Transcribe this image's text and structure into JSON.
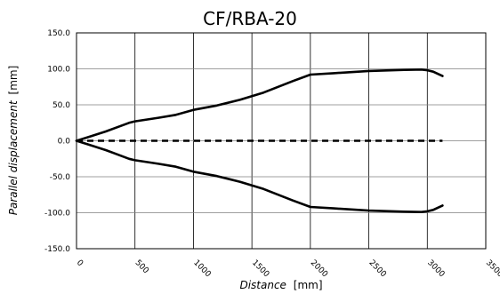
{
  "chart_data": {
    "type": "line",
    "title": "CF/RBA-20",
    "xlabel": {
      "italic": "Distance",
      "unit": "[mm]"
    },
    "ylabel": {
      "italic": "Parallel displacement",
      "unit": "[mm]"
    },
    "xlim": [
      0,
      3500
    ],
    "ylim": [
      -150,
      150
    ],
    "x_ticks": [
      0,
      500,
      1000,
      1500,
      2000,
      2500,
      3000,
      3500
    ],
    "x_tick_labels": [
      "0",
      "500",
      "1000",
      "1500",
      "2000",
      "2500",
      "3000",
      "3500"
    ],
    "y_ticks": [
      150,
      100,
      50,
      0,
      -50,
      -100,
      -150
    ],
    "y_tick_labels": [
      "150.0",
      "100.0",
      "50.0",
      "0.0",
      "-50.0",
      "-100.0",
      "-150.0"
    ],
    "grid": {
      "vertical": true,
      "horizontal": true
    },
    "legend": "none",
    "series": [
      {
        "style": "solid",
        "color": "#000000",
        "x": [
          0,
          100,
          250,
          450,
          500,
          700,
          850,
          1000,
          1200,
          1400,
          1600,
          1850,
          2000,
          2200,
          2500,
          2800,
          2950,
          3000,
          3050,
          3130
        ],
        "y": [
          0,
          5,
          13,
          25,
          27,
          32,
          36,
          43,
          49,
          57,
          67,
          83,
          92,
          94,
          97,
          98.5,
          99,
          98,
          96,
          90
        ]
      },
      {
        "style": "solid",
        "color": "#000000",
        "x": [
          0,
          100,
          250,
          450,
          500,
          700,
          850,
          1000,
          1200,
          1400,
          1600,
          1850,
          2000,
          2200,
          2500,
          2800,
          2950,
          3000,
          3050,
          3130
        ],
        "y": [
          0,
          -5,
          -13,
          -25,
          -27,
          -32,
          -36,
          -43,
          -49,
          -57,
          -67,
          -83,
          -92,
          -94,
          -97,
          -98.5,
          -99,
          -98,
          -96,
          -90
        ]
      },
      {
        "style": "dashed",
        "color": "#000000",
        "x": [
          0,
          3130
        ],
        "y": [
          0,
          0
        ]
      }
    ]
  }
}
